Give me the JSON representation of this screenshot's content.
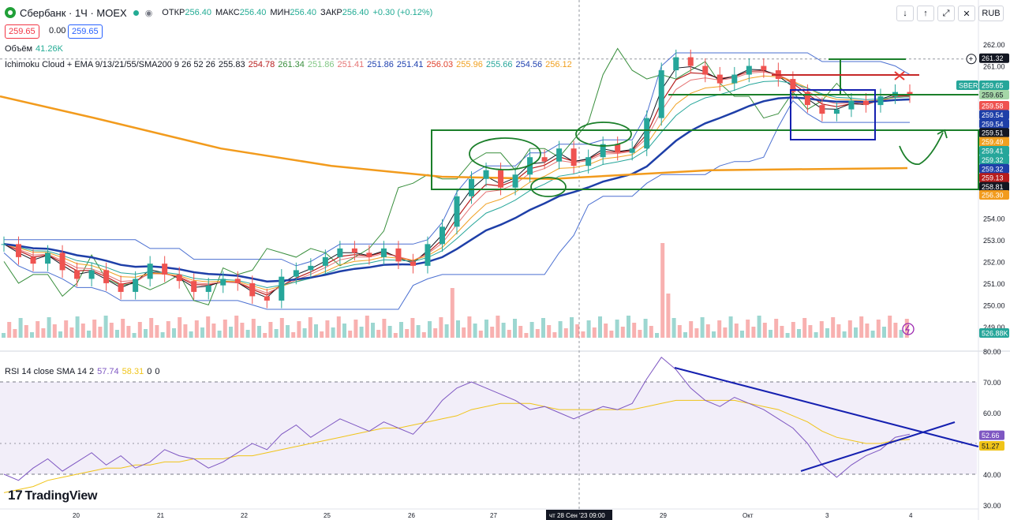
{
  "header": {
    "symbol": "Сбербанк · 1Ч · MOEX",
    "o_label": "ОТКР",
    "o_val": "256.40",
    "h_label": "МАКС",
    "h_val": "256.40",
    "l_label": "МИН",
    "l_val": "256.40",
    "c_label": "ЗАКР",
    "c_val": "256.40",
    "change": "+0.30 (+0.12%)",
    "bid": "259.65",
    "spread": "0.00",
    "ask": "259.65",
    "currency": "RUB"
  },
  "legend": {
    "volume_label": "Объём",
    "volume_value": "41.26K",
    "ichimoku_label": "Ichimoku Cloud + EMA 9/13/21/55/SMA200 9 26 52 26",
    "ichimoku_values": [
      {
        "v": "255.83",
        "c": "#131722"
      },
      {
        "v": "254.78",
        "c": "#b71c1c"
      },
      {
        "v": "261.34",
        "c": "#388e3c"
      },
      {
        "v": "251.86",
        "c": "#81c784"
      },
      {
        "v": "251.41",
        "c": "#e57373"
      },
      {
        "v": "251.86",
        "c": "#1e40af"
      },
      {
        "v": "251.41",
        "c": "#1e40af"
      },
      {
        "v": "256.03",
        "c": "#e0402b"
      },
      {
        "v": "255.96",
        "c": "#f0a020"
      },
      {
        "v": "255.66",
        "c": "#26a69a"
      },
      {
        "v": "254.56",
        "c": "#1e40af"
      },
      {
        "v": "256.12",
        "c": "#f0a020"
      }
    ],
    "rsi_label": "RSI 14 close SMA 14 2",
    "rsi_val": "57.74",
    "rsi_sma": "58.31",
    "rsi_z1": "0",
    "rsi_z2": "0"
  },
  "brand": "TradingView",
  "colors": {
    "up": "#26a69a",
    "down": "#ef5350",
    "ema_blue": "#1e3fa8",
    "sma200": "#f29b1d",
    "drawing_green": "#1b7f2a",
    "drawing_blue": "#1520b0"
  },
  "chart_data": [
    {
      "type": "line",
      "title": "",
      "y_axis_ticks": [
        "262.00",
        "261.00",
        "260.00",
        "259.00",
        "258.00",
        "257.00",
        "256.00",
        "255.00",
        "254.00",
        "253.00",
        "252.00",
        "251.00",
        "250.00",
        "249.00"
      ],
      "ylim": [
        248.6,
        262.4
      ],
      "x_axis_ticks": [
        "20",
        "21",
        "22",
        "25",
        "26",
        "27",
        "чт 28 Сен '23  09:00",
        "29",
        "Окт",
        "3",
        "4"
      ],
      "price_labels": [
        {
          "text": "261.32",
          "kind": "crosshair"
        },
        {
          "text": "SBER",
          "kind": "symbol"
        },
        {
          "text": "259.65",
          "kind": "last"
        },
        {
          "text": "259.65",
          "kind": "ask"
        },
        {
          "text": "259.58",
          "kind": "ema"
        },
        {
          "text": "259.54",
          "kind": "ema"
        },
        {
          "text": "259.54",
          "kind": "ema"
        },
        {
          "text": "259.51",
          "kind": "ema"
        },
        {
          "text": "259.49",
          "kind": "ema"
        },
        {
          "text": "259.41",
          "kind": "ema"
        },
        {
          "text": "259.32",
          "kind": "ema"
        },
        {
          "text": "259.32",
          "kind": "ema"
        },
        {
          "text": "259.13",
          "kind": "ema"
        },
        {
          "text": "258.81",
          "kind": "ema"
        },
        {
          "text": "256.30",
          "kind": "sma"
        },
        {
          "text": "526.88K",
          "kind": "volume"
        }
      ],
      "price_series": [
        252.8,
        252.2,
        251.9,
        252.4,
        251.6,
        251.2,
        251.6,
        251.0,
        250.6,
        251.2,
        251.9,
        251.4,
        251.1,
        250.6,
        250.9,
        251.2,
        251.0,
        250.4,
        250.2,
        251.3,
        251.6,
        251.8,
        252.2,
        252.6,
        252.4,
        252.2,
        252.6,
        252.0,
        251.8,
        252.8,
        253.6,
        255.0,
        255.8,
        256.2,
        255.4,
        256.0,
        256.8,
        256.6,
        257.2,
        256.4,
        256.8,
        257.4,
        257.0,
        257.2,
        258.6,
        260.8,
        261.4,
        261.0,
        260.6,
        260.2,
        260.6,
        261.0,
        260.8,
        260.4,
        259.8,
        259.2,
        258.8,
        259.0,
        259.4,
        259.2,
        259.6,
        259.8,
        259.65
      ],
      "rsi": {
        "y_axis_ticks": [
          "80.00",
          "70.00",
          "60.00",
          "50.00",
          "40.00",
          "30.00"
        ],
        "ylim": [
          30,
          80
        ],
        "band": [
          40,
          70
        ],
        "last_labels": [
          "52.66",
          "51.27"
        ],
        "rsi_series": [
          40,
          38,
          42,
          45,
          41,
          44,
          47,
          43,
          46,
          42,
          44,
          48,
          46,
          45,
          42,
          44,
          47,
          50,
          48,
          53,
          56,
          52,
          55,
          58,
          56,
          54,
          57,
          55,
          53,
          58,
          64,
          68,
          70,
          68,
          66,
          64,
          61,
          62,
          60,
          58,
          60,
          62,
          61,
          63,
          71,
          78,
          74,
          68,
          64,
          62,
          65,
          63,
          61,
          58,
          55,
          50,
          43,
          39,
          43,
          46,
          48,
          52,
          53
        ],
        "sma_series": [
          34,
          35,
          36,
          38,
          39,
          40,
          41,
          42,
          42,
          43,
          43,
          44,
          44,
          45,
          45,
          45,
          46,
          46,
          47,
          48,
          49,
          50,
          51,
          52,
          53,
          54,
          55,
          55,
          56,
          57,
          58,
          59,
          61,
          62,
          63,
          63,
          63,
          62,
          61,
          61,
          61,
          61,
          61,
          61,
          62,
          63,
          64,
          64,
          64,
          64,
          64,
          63,
          62,
          61,
          59,
          57,
          54,
          52,
          51,
          50,
          50,
          51,
          51.3
        ]
      }
    }
  ]
}
